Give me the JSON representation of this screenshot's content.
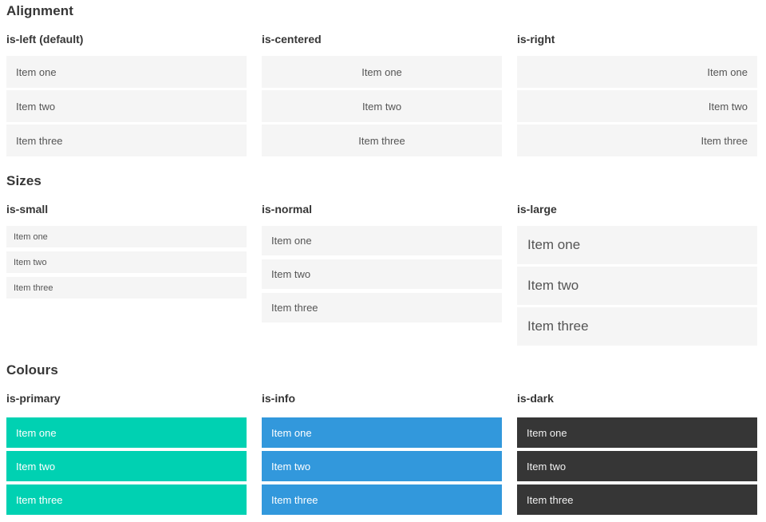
{
  "colors": {
    "primary": "#00d1b2",
    "info": "#3298dc",
    "dark": "#363636",
    "item_background": "#f5f5f5",
    "heading_text": "#363636"
  },
  "sections": [
    {
      "title": "Alignment",
      "demos": [
        {
          "label": "is-left (default)",
          "items": [
            "Item one",
            "Item two",
            "Item three"
          ]
        },
        {
          "label": "is-centered",
          "items": [
            "Item one",
            "Item two",
            "Item three"
          ]
        },
        {
          "label": "is-right",
          "items": [
            "Item one",
            "Item two",
            "Item three"
          ]
        }
      ]
    },
    {
      "title": "Sizes",
      "demos": [
        {
          "label": "is-small",
          "items": [
            "Item one",
            "Item two",
            "Item three"
          ]
        },
        {
          "label": "is-normal",
          "items": [
            "Item one",
            "Item two",
            "Item three"
          ]
        },
        {
          "label": "is-large",
          "items": [
            "Item one",
            "Item two",
            "Item three"
          ]
        }
      ]
    },
    {
      "title": "Colours",
      "demos": [
        {
          "label": "is-primary",
          "items": [
            "Item one",
            "Item two",
            "Item three"
          ]
        },
        {
          "label": "is-info",
          "items": [
            "Item one",
            "Item two",
            "Item three"
          ]
        },
        {
          "label": "is-dark",
          "items": [
            "Item one",
            "Item two",
            "Item three"
          ]
        }
      ]
    }
  ]
}
